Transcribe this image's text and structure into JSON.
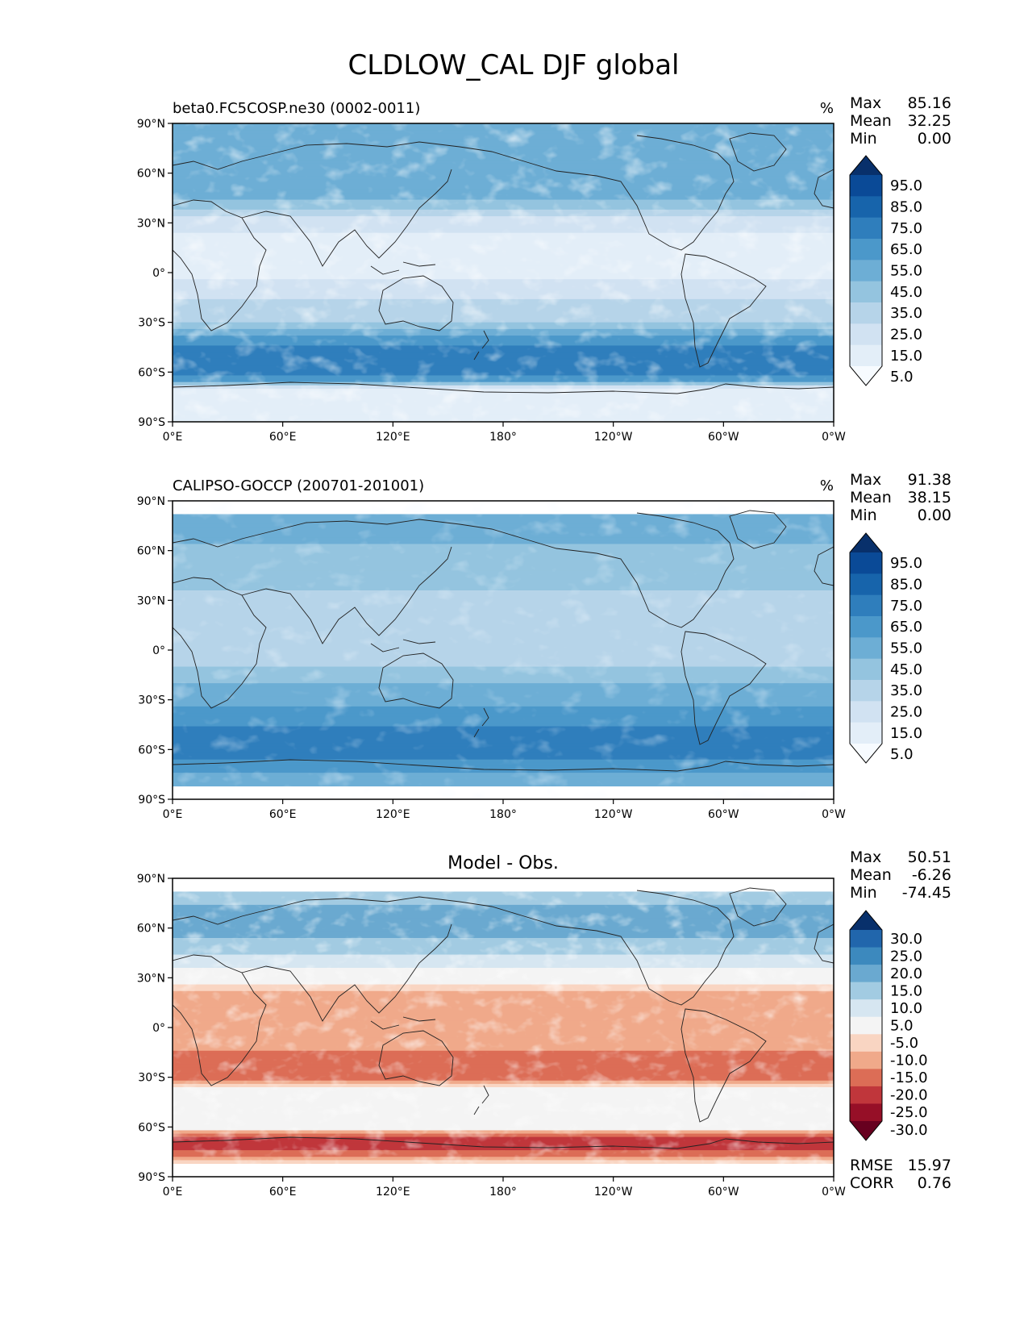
{
  "figure_title": "CLDLOW_CAL DJF global",
  "chart_data": [
    {
      "type": "heatmap",
      "title": "beta0.FC5COSP.ne30 (0002-0011)",
      "units": "%",
      "stats": {
        "max_label": "Max",
        "max": "85.16",
        "mean_label": "Mean",
        "mean": "32.25",
        "min_label": "Min",
        "min": "0.00"
      },
      "x_ticks": [
        "0°E",
        "60°E",
        "120°E",
        "180°",
        "120°W",
        "60°W",
        "0°W"
      ],
      "y_ticks": [
        "90°N",
        "60°N",
        "30°N",
        "0°",
        "30°S",
        "60°S",
        "90°S"
      ],
      "xlim": [
        0,
        360
      ],
      "ylim": [
        -90,
        90
      ],
      "colormap": "Blues",
      "colorbar_levels": [
        "95.0",
        "85.0",
        "75.0",
        "65.0",
        "55.0",
        "45.0",
        "35.0",
        "25.0",
        "15.0",
        "5.0"
      ],
      "colorbar_colors": [
        "#08306b",
        "#0a4a97",
        "#1764ab",
        "#2f7ebc",
        "#4b98ca",
        "#6daed5",
        "#94c4df",
        "#b6d4e9",
        "#d1e2f2",
        "#e3eef8",
        "#f7fbff"
      ],
      "zonal_profile": {
        "lat": [
          90,
          80,
          70,
          60,
          50,
          40,
          30,
          20,
          10,
          0,
          -10,
          -20,
          -30,
          -40,
          -50,
          -60,
          -65,
          -70,
          -80,
          -90
        ],
        "value": [
          45,
          50,
          55,
          45,
          55,
          40,
          18,
          12,
          10,
          12,
          18,
          30,
          35,
          60,
          70,
          68,
          55,
          15,
          8,
          5
        ]
      }
    },
    {
      "type": "heatmap",
      "title": "CALIPSO-GOCCP (200701-201001)",
      "units": "%",
      "stats": {
        "max_label": "Max",
        "max": "91.38",
        "mean_label": "Mean",
        "mean": "38.15",
        "min_label": "Min",
        "min": "0.00"
      },
      "x_ticks": [
        "0°E",
        "60°E",
        "120°E",
        "180°",
        "120°W",
        "60°W",
        "0°W"
      ],
      "y_ticks": [
        "90°N",
        "60°N",
        "30°N",
        "0°",
        "30°S",
        "60°S",
        "90°S"
      ],
      "xlim": [
        0,
        360
      ],
      "ylim": [
        -90,
        90
      ],
      "colormap": "Blues",
      "colorbar_levels": [
        "95.0",
        "85.0",
        "75.0",
        "65.0",
        "55.0",
        "45.0",
        "35.0",
        "25.0",
        "15.0",
        "5.0"
      ],
      "colorbar_colors": [
        "#08306b",
        "#0a4a97",
        "#1764ab",
        "#2f7ebc",
        "#4b98ca",
        "#6daed5",
        "#94c4df",
        "#b6d4e9",
        "#d1e2f2",
        "#e3eef8",
        "#f7fbff"
      ],
      "data_lat_range": [
        -82,
        82
      ],
      "zonal_profile": {
        "lat": [
          82,
          70,
          60,
          50,
          40,
          30,
          20,
          10,
          0,
          -10,
          -20,
          -30,
          -40,
          -50,
          -60,
          -70,
          -82
        ],
        "value": [
          55,
          50,
          42,
          45,
          38,
          30,
          28,
          30,
          30,
          35,
          45,
          52,
          60,
          68,
          70,
          62,
          45
        ]
      }
    },
    {
      "type": "heatmap",
      "title": "Model - Obs.",
      "units": "",
      "stats": {
        "max_label": "Max",
        "max": "50.51",
        "mean_label": "Mean",
        "mean": "-6.26",
        "min_label": "Min",
        "min": "-74.45",
        "rmse_label": "RMSE",
        "rmse": "15.97",
        "corr_label": "CORR",
        "corr": "0.76"
      },
      "x_ticks": [
        "0°E",
        "60°E",
        "120°E",
        "180°",
        "120°W",
        "60°W",
        "0°W"
      ],
      "y_ticks": [
        "90°N",
        "60°N",
        "30°N",
        "0°",
        "30°S",
        "60°S",
        "90°S"
      ],
      "xlim": [
        0,
        360
      ],
      "ylim": [
        -90,
        90
      ],
      "colormap": "RdBu",
      "colorbar_levels": [
        "30.0",
        "25.0",
        "20.0",
        "15.0",
        "10.0",
        "5.0",
        "-5.0",
        "-10.0",
        "-15.0",
        "-20.0",
        "-25.0",
        "-30.0"
      ],
      "colorbar_colors": [
        "#08306b",
        "#2166ac",
        "#3c89be",
        "#6aa9d0",
        "#a2cbe2",
        "#d6e6f1",
        "#f4f4f4",
        "#f9d5c2",
        "#f0a98a",
        "#dc6d56",
        "#c0363b",
        "#960f27",
        "#67001f"
      ],
      "data_lat_range": [
        -82,
        82
      ],
      "zonal_profile": {
        "lat": [
          82,
          70,
          60,
          50,
          40,
          30,
          20,
          10,
          0,
          -10,
          -20,
          -30,
          -40,
          -50,
          -60,
          -65,
          -70,
          -82
        ],
        "value": [
          10,
          18,
          20,
          12,
          8,
          0,
          -12,
          -14,
          -10,
          -12,
          -20,
          -18,
          2,
          5,
          0,
          -20,
          -25,
          -8
        ]
      }
    }
  ]
}
